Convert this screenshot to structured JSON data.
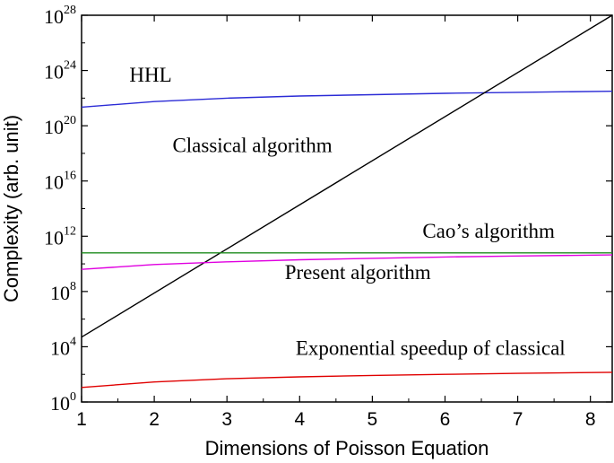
{
  "chart_data": {
    "type": "line",
    "title": "",
    "xlabel": "Dimensions of Poisson Equation",
    "ylabel": "Complexity (arb. unit)",
    "xlim": [
      1,
      8.3
    ],
    "ylim_log10": [
      0,
      28
    ],
    "yscale": "log",
    "grid": false,
    "x_ticks": [
      1,
      2,
      3,
      4,
      5,
      6,
      7,
      8
    ],
    "x_tick_labels": [
      "1",
      "2",
      "3",
      "4",
      "5",
      "6",
      "7",
      "8"
    ],
    "y_ticks_log10": [
      0,
      4,
      8,
      12,
      16,
      20,
      24,
      28
    ],
    "y_tick_base": "10",
    "y_tick_exponents": [
      "0",
      "4",
      "8",
      "12",
      "16",
      "20",
      "24",
      "28"
    ],
    "series": [
      {
        "name": "HHL",
        "color": "#2b2bd6",
        "x": [
          1,
          2,
          3,
          4,
          5,
          6,
          7,
          8.3
        ],
        "log10_y": [
          21.35,
          21.75,
          22.0,
          22.15,
          22.25,
          22.35,
          22.42,
          22.5
        ]
      },
      {
        "name": "Classical algorithm",
        "color": "#000000",
        "x": [
          1,
          8.3
        ],
        "log10_y": [
          4.7,
          28.0
        ]
      },
      {
        "name": "Cao’s algorithm",
        "color": "#1e8c1e",
        "x": [
          1,
          8.3
        ],
        "log10_y": [
          10.8,
          10.8
        ]
      },
      {
        "name": "Present algorithm",
        "color": "#e000e0",
        "x": [
          1,
          2,
          3,
          4,
          5,
          6,
          7,
          8.3
        ],
        "log10_y": [
          9.6,
          9.95,
          10.15,
          10.3,
          10.4,
          10.5,
          10.57,
          10.65
        ]
      },
      {
        "name": "Exponential speedup of classical",
        "color": "#e00000",
        "x": [
          1,
          2,
          3,
          4,
          5,
          6,
          7,
          8.3
        ],
        "log10_y": [
          1.05,
          1.45,
          1.68,
          1.82,
          1.92,
          2.0,
          2.07,
          2.15
        ]
      }
    ],
    "annotations": [
      {
        "text": "HHL",
        "x": 1.95,
        "log10_y": 23.2
      },
      {
        "text": "Classical algorithm",
        "x": 3.35,
        "log10_y": 18.1
      },
      {
        "text": "Cao’s algorithm",
        "x": 6.6,
        "log10_y": 11.9
      },
      {
        "text": "Present algorithm",
        "x": 4.8,
        "log10_y": 8.9
      },
      {
        "text": "Exponential speedup of classical",
        "x": 5.8,
        "log10_y": 3.4
      }
    ]
  }
}
